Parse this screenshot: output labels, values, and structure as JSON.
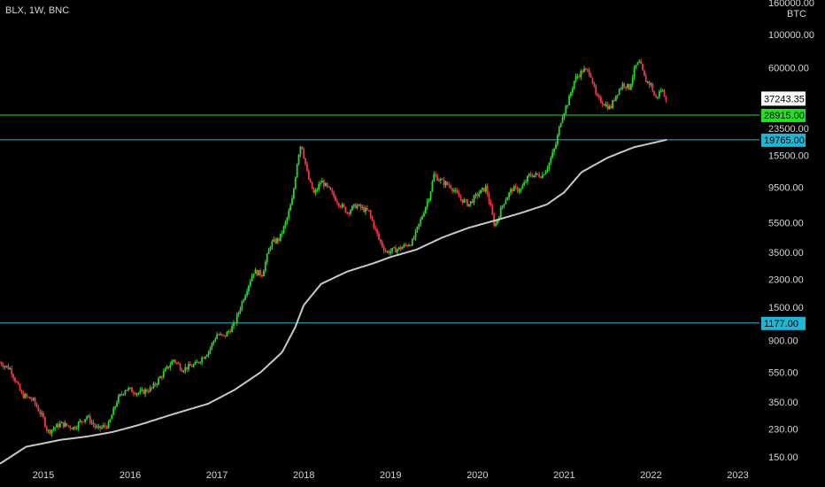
{
  "header": {
    "symbol_label": "BLX, 1W, BNC"
  },
  "colors": {
    "background": "#000000",
    "candle_up": "#26d926",
    "candle_down": "#f23645",
    "ma_line": "#c8c8c8",
    "current_price_bg": "#ffffff",
    "green_level": "#22e022",
    "cyan_level": "#1fb6d6"
  },
  "price_axis": {
    "currency": "BTC",
    "top_partial_label": "160000.00",
    "ticks": [
      "100000.00",
      "60000.00",
      "23500.00",
      "15500.00",
      "9500.00",
      "5500.00",
      "3500.00",
      "2300.00",
      "1500.00",
      "900.00",
      "550.00",
      "350.00",
      "230.00",
      "150.00"
    ],
    "current_price": "37243.35",
    "levels": [
      {
        "label": "28915.00",
        "value": 28915,
        "color": "#22e022"
      },
      {
        "label": "19765.00",
        "value": 19765,
        "color": "#1fb6d6"
      },
      {
        "label": "1177.00",
        "value": 1177,
        "color": "#1fb6d6"
      }
    ]
  },
  "time_axis": {
    "labels": [
      "2015",
      "2016",
      "2017",
      "2018",
      "2019",
      "2020",
      "2021",
      "2022",
      "2023"
    ]
  },
  "chart_data": {
    "type": "candlestick",
    "interval": "1W",
    "y_scale": "log",
    "ylim": [
      140,
      170000
    ],
    "xlim": [
      2014.5,
      2023.25
    ],
    "close_anchors": [
      [
        2014.5,
        640
      ],
      [
        2014.62,
        580
      ],
      [
        2014.75,
        390
      ],
      [
        2014.88,
        360
      ],
      [
        2015.0,
        270
      ],
      [
        2015.05,
        220
      ],
      [
        2015.2,
        250
      ],
      [
        2015.35,
        235
      ],
      [
        2015.5,
        280
      ],
      [
        2015.62,
        230
      ],
      [
        2015.75,
        245
      ],
      [
        2015.85,
        360
      ],
      [
        2015.95,
        430
      ],
      [
        2016.1,
        400
      ],
      [
        2016.25,
        430
      ],
      [
        2016.4,
        560
      ],
      [
        2016.5,
        670
      ],
      [
        2016.6,
        580
      ],
      [
        2016.75,
        620
      ],
      [
        2016.9,
        760
      ],
      [
        2017.0,
        990
      ],
      [
        2017.08,
        950
      ],
      [
        2017.2,
        1150
      ],
      [
        2017.3,
        1700
      ],
      [
        2017.42,
        2600
      ],
      [
        2017.52,
        2500
      ],
      [
        2017.62,
        4000
      ],
      [
        2017.72,
        4300
      ],
      [
        2017.8,
        5700
      ],
      [
        2017.87,
        8000
      ],
      [
        2017.93,
        15000
      ],
      [
        2017.97,
        19000
      ],
      [
        2018.05,
        11000
      ],
      [
        2018.12,
        8500
      ],
      [
        2018.2,
        10500
      ],
      [
        2018.3,
        9000
      ],
      [
        2018.4,
        7500
      ],
      [
        2018.5,
        6500
      ],
      [
        2018.6,
        7200
      ],
      [
        2018.75,
        6500
      ],
      [
        2018.87,
        4200
      ],
      [
        2018.95,
        3500
      ],
      [
        2019.1,
        3700
      ],
      [
        2019.25,
        4100
      ],
      [
        2019.35,
        5800
      ],
      [
        2019.45,
        8500
      ],
      [
        2019.5,
        11500
      ],
      [
        2019.6,
        10300
      ],
      [
        2019.7,
        9600
      ],
      [
        2019.8,
        8000
      ],
      [
        2019.9,
        7300
      ],
      [
        2020.0,
        8500
      ],
      [
        2020.1,
        9500
      ],
      [
        2020.2,
        5200
      ],
      [
        2020.3,
        7500
      ],
      [
        2020.4,
        9300
      ],
      [
        2020.5,
        9200
      ],
      [
        2020.6,
        11500
      ],
      [
        2020.75,
        11500
      ],
      [
        2020.82,
        13500
      ],
      [
        2020.9,
        18000
      ],
      [
        2020.97,
        28000
      ],
      [
        2021.05,
        36000
      ],
      [
        2021.12,
        50000
      ],
      [
        2021.22,
        58000
      ],
      [
        2021.3,
        56000
      ],
      [
        2021.37,
        38000
      ],
      [
        2021.45,
        35000
      ],
      [
        2021.53,
        32000
      ],
      [
        2021.6,
        40000
      ],
      [
        2021.68,
        47000
      ],
      [
        2021.75,
        44000
      ],
      [
        2021.82,
        61000
      ],
      [
        2021.87,
        65000
      ],
      [
        2021.93,
        50000
      ],
      [
        2022.0,
        46000
      ],
      [
        2022.05,
        37000
      ],
      [
        2022.12,
        43000
      ],
      [
        2022.18,
        37243
      ]
    ],
    "moving_average_anchors": [
      [
        2014.5,
        135
      ],
      [
        2014.8,
        175
      ],
      [
        2015.2,
        195
      ],
      [
        2015.5,
        205
      ],
      [
        2015.8,
        220
      ],
      [
        2016.1,
        245
      ],
      [
        2016.5,
        290
      ],
      [
        2016.9,
        340
      ],
      [
        2017.2,
        420
      ],
      [
        2017.5,
        550
      ],
      [
        2017.75,
        750
      ],
      [
        2017.9,
        1100
      ],
      [
        2018.0,
        1550
      ],
      [
        2018.2,
        2150
      ],
      [
        2018.5,
        2600
      ],
      [
        2018.8,
        2950
      ],
      [
        2019.0,
        3250
      ],
      [
        2019.3,
        3650
      ],
      [
        2019.6,
        4400
      ],
      [
        2019.9,
        5100
      ],
      [
        2020.2,
        5700
      ],
      [
        2020.5,
        6400
      ],
      [
        2020.8,
        7300
      ],
      [
        2021.0,
        8800
      ],
      [
        2021.2,
        12000
      ],
      [
        2021.5,
        15000
      ],
      [
        2021.8,
        17600
      ],
      [
        2022.18,
        19765
      ]
    ]
  }
}
